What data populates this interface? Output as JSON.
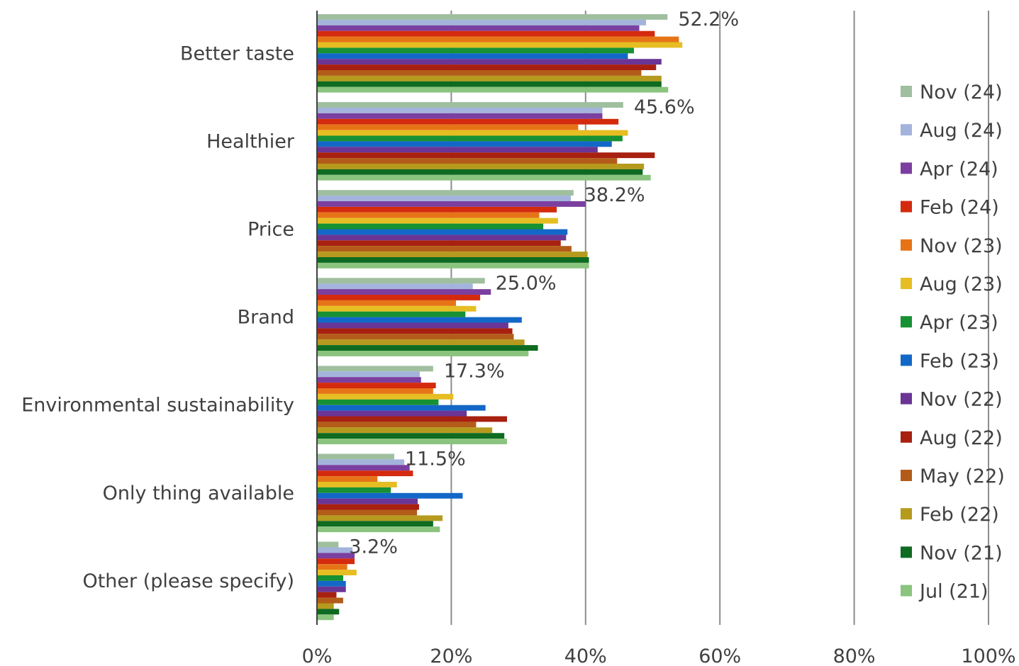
{
  "chart_data": {
    "type": "bar",
    "orientation": "horizontal",
    "categories": [
      "Better taste",
      "Healthier",
      "Price",
      "Brand",
      "Environmental sustainability",
      "Only thing available",
      "Other (please specify)"
    ],
    "xlim": [
      0,
      100
    ],
    "x_ticks": [
      "0%",
      "20%",
      "40%",
      "60%",
      "80%",
      "100%"
    ],
    "grid": "vertical",
    "legend_position": "right",
    "data_labels": [
      "52.2%",
      "45.6%",
      "38.2%",
      "25.0%",
      "17.3%",
      "11.5%",
      "3.2%"
    ],
    "series": [
      {
        "name": "Nov (24)",
        "color": "#9fbf9f",
        "values": [
          52.2,
          45.6,
          38.2,
          25.0,
          17.3,
          11.5,
          3.2
        ]
      },
      {
        "name": "Aug (24)",
        "color": "#a3b3dc",
        "values": [
          49.0,
          42.5,
          37.8,
          23.2,
          15.3,
          13.0,
          5.3
        ]
      },
      {
        "name": "Apr (24)",
        "color": "#7b3fa0",
        "values": [
          48.0,
          42.5,
          40.0,
          25.9,
          15.5,
          13.8,
          5.6
        ]
      },
      {
        "name": "Feb (24)",
        "color": "#d42a0e",
        "values": [
          50.3,
          44.9,
          35.7,
          24.3,
          17.7,
          14.3,
          5.6
        ]
      },
      {
        "name": "Nov (23)",
        "color": "#e67417",
        "values": [
          53.9,
          38.9,
          33.1,
          20.7,
          17.3,
          9.0,
          4.5
        ]
      },
      {
        "name": "Aug (23)",
        "color": "#e6be23",
        "values": [
          54.4,
          46.3,
          35.9,
          23.7,
          20.3,
          11.9,
          5.9
        ]
      },
      {
        "name": "Apr (23)",
        "color": "#179133",
        "values": [
          47.2,
          45.5,
          33.7,
          22.1,
          18.1,
          11.0,
          3.9
        ]
      },
      {
        "name": "Feb (23)",
        "color": "#1368c7",
        "values": [
          46.3,
          43.9,
          37.3,
          30.5,
          25.1,
          21.7,
          4.3
        ]
      },
      {
        "name": "Nov (22)",
        "color": "#6a3595",
        "values": [
          51.3,
          41.8,
          37.1,
          28.5,
          22.3,
          15.0,
          4.3
        ]
      },
      {
        "name": "Aug (22)",
        "color": "#a82010",
        "values": [
          50.5,
          50.3,
          36.3,
          29.1,
          28.3,
          15.2,
          2.9
        ]
      },
      {
        "name": "May (22)",
        "color": "#b35c1a",
        "values": [
          48.3,
          44.7,
          37.9,
          29.3,
          23.7,
          14.9,
          3.9
        ]
      },
      {
        "name": "Feb (22)",
        "color": "#b69a1e",
        "values": [
          51.3,
          48.7,
          40.3,
          30.9,
          26.1,
          18.7,
          2.5
        ]
      },
      {
        "name": "Nov (21)",
        "color": "#0e6b21",
        "values": [
          51.3,
          48.5,
          40.5,
          32.9,
          27.9,
          17.3,
          3.3
        ]
      },
      {
        "name": "Jul (21)",
        "color": "#8ac47e",
        "values": [
          52.3,
          49.7,
          40.5,
          31.5,
          28.3,
          18.3,
          2.5
        ]
      }
    ]
  }
}
